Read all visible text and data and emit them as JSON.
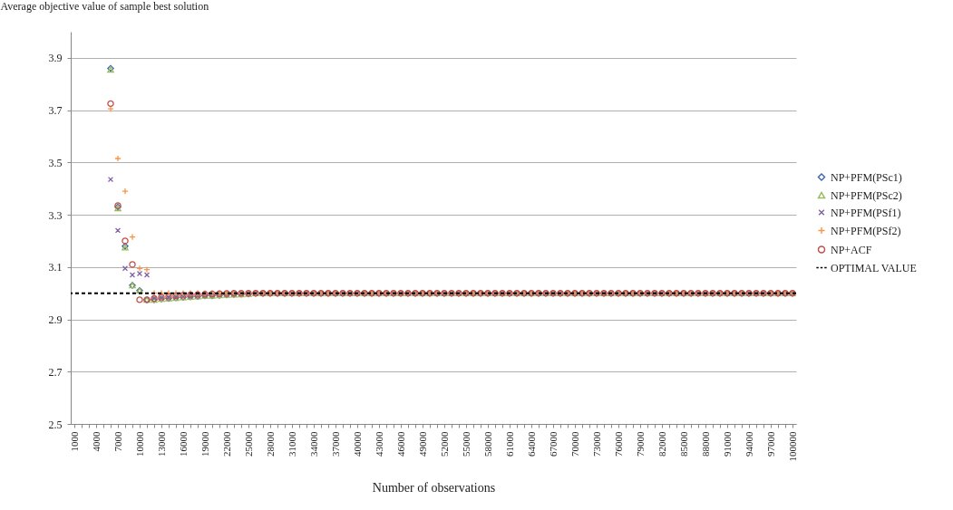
{
  "chart_data": {
    "type": "scatter",
    "ylabel": "Average objective value of sample best solution",
    "xlabel": "Number of observations",
    "categories": [
      "1000",
      null,
      null,
      "4000",
      null,
      null,
      "7000",
      null,
      null,
      "10000",
      null,
      null,
      "13000",
      null,
      null,
      "16000",
      null,
      null,
      "19000",
      null,
      null,
      "22000",
      null,
      null,
      "25000",
      null,
      null,
      "28000",
      null,
      null,
      "31000",
      null,
      null,
      "34000",
      null,
      null,
      "37000",
      null,
      null,
      "40000",
      null,
      null,
      "43000",
      null,
      null,
      "46000",
      null,
      null,
      "49000",
      null,
      null,
      "52000",
      null,
      null,
      "55000",
      null,
      null,
      "58000",
      null,
      null,
      "61000",
      null,
      null,
      "64000",
      null,
      null,
      "67000",
      null,
      null,
      "70000",
      null,
      null,
      "73000",
      null,
      null,
      "76000",
      null,
      null,
      "79000",
      null,
      null,
      "82000",
      null,
      null,
      "85000",
      null,
      null,
      "88000",
      null,
      null,
      "91000",
      null,
      null,
      "94000",
      null,
      null,
      "97000",
      null,
      null,
      "100000"
    ],
    "series": [
      {
        "name": "NP+PFM(PSc1)",
        "color": "#3f67a8",
        "marker": "diamond",
        "values": [
          null,
          null,
          null,
          null,
          null,
          3.86,
          3.33,
          3.18,
          3.03,
          3.01,
          2.975,
          2.975,
          2.978,
          2.98,
          2.982,
          2.984,
          2.986,
          2.988,
          2.99,
          2.99,
          2.992,
          2.994,
          2.995,
          2.996,
          2.997,
          3.0,
          3.0,
          3.0,
          3.0,
          3.0,
          3.0,
          3.0,
          3.0,
          3.0,
          3.0,
          3.0,
          3.0,
          3.0,
          3.0,
          3.0,
          3.0,
          3.0,
          3.0,
          3.0,
          3.0,
          3.0,
          3.0,
          3.0,
          3.0,
          3.0,
          3.0,
          3.0,
          3.0,
          3.0,
          3.0,
          3.0,
          3.0,
          3.0,
          3.0,
          3.0,
          3.0,
          3.0,
          3.0,
          3.0,
          3.0,
          3.0,
          3.0,
          3.0,
          3.0,
          3.0,
          3.0,
          3.0,
          3.0,
          3.0,
          3.0,
          3.0,
          3.0,
          3.0,
          3.0,
          3.0,
          3.0,
          3.0,
          3.0,
          3.0,
          3.0,
          3.0,
          3.0,
          3.0,
          3.0,
          3.0,
          3.0,
          3.0,
          3.0,
          3.0,
          3.0,
          3.0,
          3.0,
          3.0,
          3.0,
          3.0
        ]
      },
      {
        "name": "NP+PFM(PSc2)",
        "color": "#9bbb59",
        "marker": "triangle",
        "values": [
          null,
          null,
          null,
          null,
          null,
          3.855,
          3.325,
          3.175,
          3.03,
          3.01,
          2.975,
          2.975,
          2.978,
          2.98,
          2.982,
          2.984,
          2.986,
          2.988,
          2.99,
          2.99,
          2.992,
          2.994,
          2.995,
          2.996,
          2.997,
          3.0,
          3.0,
          3.0,
          3.0,
          3.0,
          3.0,
          3.0,
          3.0,
          3.0,
          3.0,
          3.0,
          3.0,
          3.0,
          3.0,
          3.0,
          3.0,
          3.0,
          3.0,
          3.0,
          3.0,
          3.0,
          3.0,
          3.0,
          3.0,
          3.0,
          3.0,
          3.0,
          3.0,
          3.0,
          3.0,
          3.0,
          3.0,
          3.0,
          3.0,
          3.0,
          3.0,
          3.0,
          3.0,
          3.0,
          3.0,
          3.0,
          3.0,
          3.0,
          3.0,
          3.0,
          3.0,
          3.0,
          3.0,
          3.0,
          3.0,
          3.0,
          3.0,
          3.0,
          3.0,
          3.0,
          3.0,
          3.0,
          3.0,
          3.0,
          3.0,
          3.0,
          3.0,
          3.0,
          3.0,
          3.0,
          3.0,
          3.0,
          3.0,
          3.0,
          3.0,
          3.0,
          3.0,
          3.0,
          3.0,
          3.0
        ]
      },
      {
        "name": "NP+PFM(PSf1)",
        "color": "#7f60a0",
        "marker": "x",
        "values": [
          null,
          null,
          null,
          null,
          null,
          3.435,
          3.24,
          3.095,
          3.07,
          3.075,
          3.07,
          2.98,
          2.982,
          2.984,
          2.986,
          2.988,
          2.99,
          2.99,
          2.992,
          2.994,
          2.995,
          2.996,
          2.997,
          2.998,
          2.999,
          3.0,
          3.0,
          3.0,
          3.0,
          3.0,
          3.0,
          3.0,
          3.0,
          3.0,
          3.0,
          3.0,
          3.0,
          3.0,
          3.0,
          3.0,
          3.0,
          3.0,
          3.0,
          3.0,
          3.0,
          3.0,
          3.0,
          3.0,
          3.0,
          3.0,
          3.0,
          3.0,
          3.0,
          3.0,
          3.0,
          3.0,
          3.0,
          3.0,
          3.0,
          3.0,
          3.0,
          3.0,
          3.0,
          3.0,
          3.0,
          3.0,
          3.0,
          3.0,
          3.0,
          3.0,
          3.0,
          3.0,
          3.0,
          3.0,
          3.0,
          3.0,
          3.0,
          3.0,
          3.0,
          3.0,
          3.0,
          3.0,
          3.0,
          3.0,
          3.0,
          3.0,
          3.0,
          3.0,
          3.0,
          3.0,
          3.0,
          3.0,
          3.0,
          3.0,
          3.0,
          3.0,
          3.0,
          3.0,
          3.0,
          3.0
        ]
      },
      {
        "name": "NP+PFM(PSf2)",
        "color": "#f79646",
        "marker": "cross",
        "values": [
          null,
          null,
          null,
          null,
          null,
          3.705,
          3.515,
          3.39,
          3.215,
          3.095,
          3.09,
          3.0,
          3.0,
          3.0,
          3.0,
          3.0,
          3.0,
          3.0,
          3.0,
          3.0,
          3.0,
          3.0,
          3.0,
          3.0,
          3.0,
          3.0,
          3.0,
          3.0,
          3.0,
          3.0,
          3.0,
          3.0,
          3.0,
          3.0,
          3.0,
          3.0,
          3.0,
          3.0,
          3.0,
          3.0,
          3.0,
          3.0,
          3.0,
          3.0,
          3.0,
          3.0,
          3.0,
          3.0,
          3.0,
          3.0,
          3.0,
          3.0,
          3.0,
          3.0,
          3.0,
          3.0,
          3.0,
          3.0,
          3.0,
          3.0,
          3.0,
          3.0,
          3.0,
          3.0,
          3.0,
          3.0,
          3.0,
          3.0,
          3.0,
          3.0,
          3.0,
          3.0,
          3.0,
          3.0,
          3.0,
          3.0,
          3.0,
          3.0,
          3.0,
          3.0,
          3.0,
          3.0,
          3.0,
          3.0,
          3.0,
          3.0,
          3.0,
          3.0,
          3.0,
          3.0,
          3.0,
          3.0,
          3.0,
          3.0,
          3.0,
          3.0,
          3.0,
          3.0,
          3.0,
          3.0
        ]
      },
      {
        "name": "NP+ACF",
        "color": "#c0504d",
        "marker": "circle",
        "values": [
          null,
          null,
          null,
          null,
          null,
          3.725,
          3.335,
          3.2,
          3.11,
          2.975,
          2.975,
          2.98,
          2.985,
          2.988,
          2.99,
          2.992,
          2.994,
          2.995,
          2.996,
          2.997,
          2.998,
          2.999,
          3.0,
          3.0,
          3.0,
          3.0,
          3.0,
          3.0,
          3.0,
          3.0,
          3.0,
          3.0,
          3.0,
          3.0,
          3.0,
          3.0,
          3.0,
          3.0,
          3.0,
          3.0,
          3.0,
          3.0,
          3.0,
          3.0,
          3.0,
          3.0,
          3.0,
          3.0,
          3.0,
          3.0,
          3.0,
          3.0,
          3.0,
          3.0,
          3.0,
          3.0,
          3.0,
          3.0,
          3.0,
          3.0,
          3.0,
          3.0,
          3.0,
          3.0,
          3.0,
          3.0,
          3.0,
          3.0,
          3.0,
          3.0,
          3.0,
          3.0,
          3.0,
          3.0,
          3.0,
          3.0,
          3.0,
          3.0,
          3.0,
          3.0,
          3.0,
          3.0,
          3.0,
          3.0,
          3.0,
          3.0,
          3.0,
          3.0,
          3.0,
          3.0,
          3.0,
          3.0,
          3.0,
          3.0,
          3.0,
          3.0,
          3.0,
          3.0,
          3.0,
          3.0
        ]
      }
    ],
    "ref_lines": [
      {
        "axis": "y",
        "value": 3.0,
        "label": "OPTIMAL VALUE",
        "color": "#000000",
        "line_style": "dashed"
      }
    ],
    "ylim": [
      2.5,
      4.0
    ],
    "yticks": [
      2.5,
      2.7,
      2.9,
      3.1,
      3.3,
      3.5,
      3.7,
      3.9
    ],
    "grid": "y",
    "legend": "right"
  }
}
